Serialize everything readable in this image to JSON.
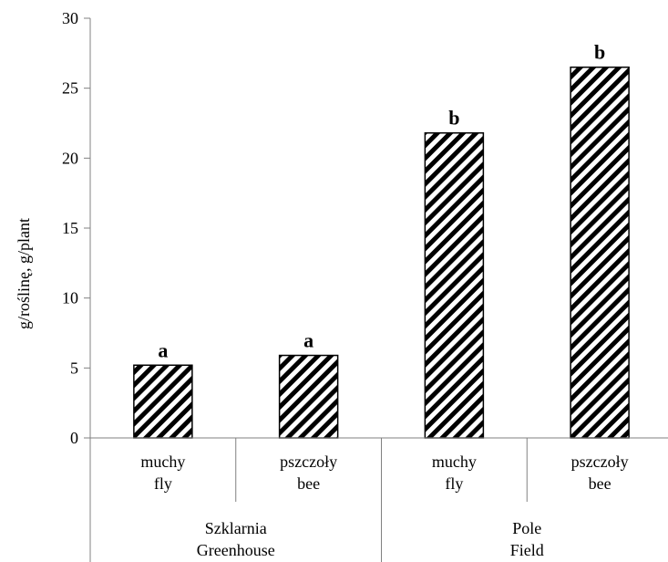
{
  "chart_data": {
    "type": "bar",
    "title": "",
    "ylabel": "g/roślinę, g/plant",
    "xlabel": "",
    "ylim": [
      0,
      30
    ],
    "yticks": [
      0,
      5,
      10,
      15,
      20,
      25,
      30
    ],
    "grid": false,
    "legend": "none",
    "bar_pattern": "diagonal-hatch",
    "colors": {
      "bar_fill": "#ffffff",
      "hatch": "#000000",
      "axis": "#808080"
    },
    "categories": [
      {
        "line1": "muchy",
        "line2": "fly"
      },
      {
        "line1": "pszczoły",
        "line2": "bee"
      },
      {
        "line1": "muchy",
        "line2": "fly"
      },
      {
        "line1": "pszczoły",
        "line2": "bee"
      }
    ],
    "groups": [
      {
        "line1": "Szklarnia",
        "line2": "Greenhouse",
        "span": [
          0,
          1
        ]
      },
      {
        "line1": "Pole",
        "line2": "Field",
        "span": [
          2,
          3
        ]
      }
    ],
    "values": [
      5.2,
      5.9,
      21.8,
      26.5
    ],
    "significance": [
      "a",
      "a",
      "b",
      "b"
    ]
  }
}
